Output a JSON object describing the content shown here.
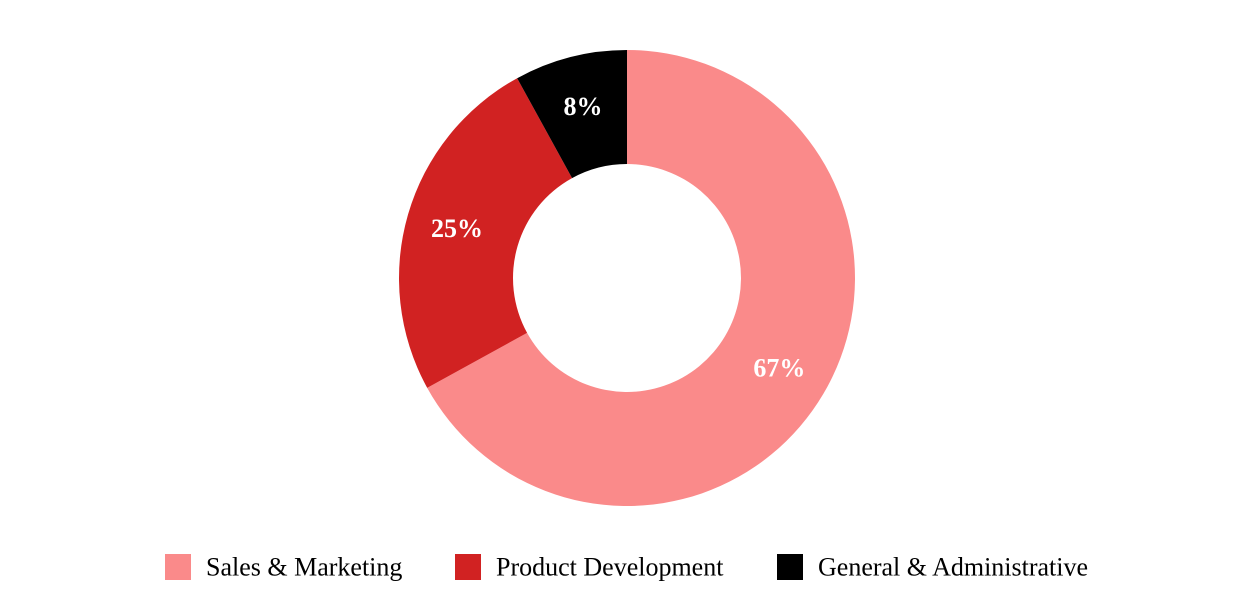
{
  "chart_data": {
    "type": "pie",
    "variant": "donut",
    "categories": [
      "Sales & Marketing",
      "Product Development",
      "General & Administrative"
    ],
    "values": [
      67,
      25,
      8
    ],
    "labels": [
      "67%",
      "25%",
      "8%"
    ],
    "colors": [
      "#fa8a8a",
      "#d12222",
      "#000000"
    ],
    "legend_position": "bottom"
  }
}
